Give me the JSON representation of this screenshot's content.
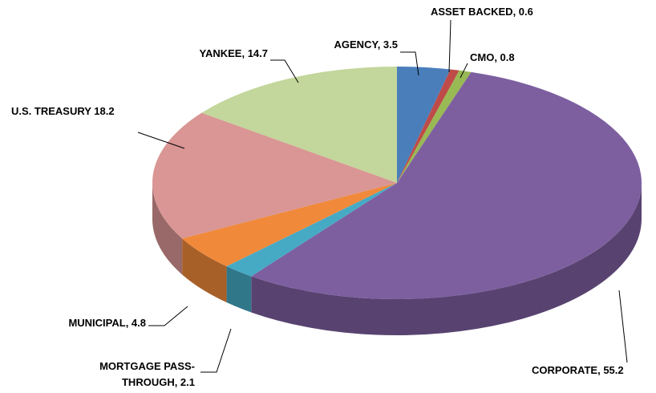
{
  "chart_data": {
    "type": "pie3d",
    "value_labels": [
      "AGENCY, 3.5",
      "ASSET BACKED, 0.6",
      "CMO, 0.8",
      "CORPORATE, 55.2",
      "MORTGAGE PASS-THROUGH, 2.1",
      "MUNICIPAL, 4.8",
      "U.S. TREASURY  18.2",
      "YANKEE, 14.7"
    ],
    "values": [
      3.5,
      0.6,
      0.8,
      55.2,
      2.1,
      4.8,
      18.2,
      14.7
    ],
    "colors": [
      "#4a7ebb",
      "#be4b48",
      "#98b954",
      "#7d5fa0",
      "#46aac5",
      "#f0893a",
      "#d99694",
      "#c3d69b"
    ]
  }
}
